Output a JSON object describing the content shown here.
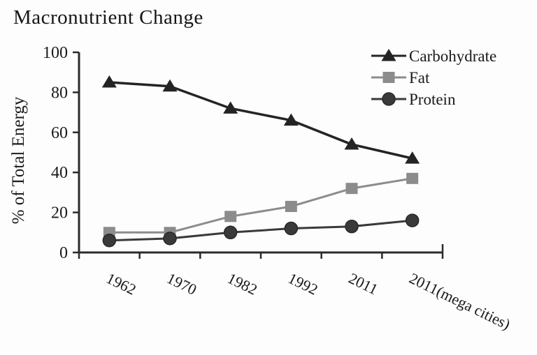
{
  "chart_data": {
    "type": "line",
    "title": "Macronutrient Change",
    "xlabel": "",
    "ylabel": "% of Total Energy",
    "categories": [
      "1962",
      "1970",
      "1982",
      "1992",
      "2011",
      "2011(mega cities)"
    ],
    "series": [
      {
        "name": "Carbohydrate",
        "marker": "triangle",
        "color": "#242424",
        "values": [
          85,
          83,
          72,
          66,
          54,
          47
        ]
      },
      {
        "name": "Fat",
        "marker": "square",
        "color": "#8c8c8c",
        "values": [
          10,
          10,
          18,
          23,
          32,
          37
        ]
      },
      {
        "name": "Protein",
        "marker": "circle",
        "color": "#3a3a3a",
        "values": [
          6,
          7,
          10,
          12,
          13,
          16
        ]
      }
    ],
    "ylim": [
      0,
      100
    ],
    "yticks": [
      0,
      20,
      40,
      60,
      80,
      100
    ],
    "grid": false,
    "legend_position": "top-right",
    "axis_color": "#2b2b2b",
    "text_color": "#1a1a1a",
    "x_label_rotation_deg": 26
  }
}
